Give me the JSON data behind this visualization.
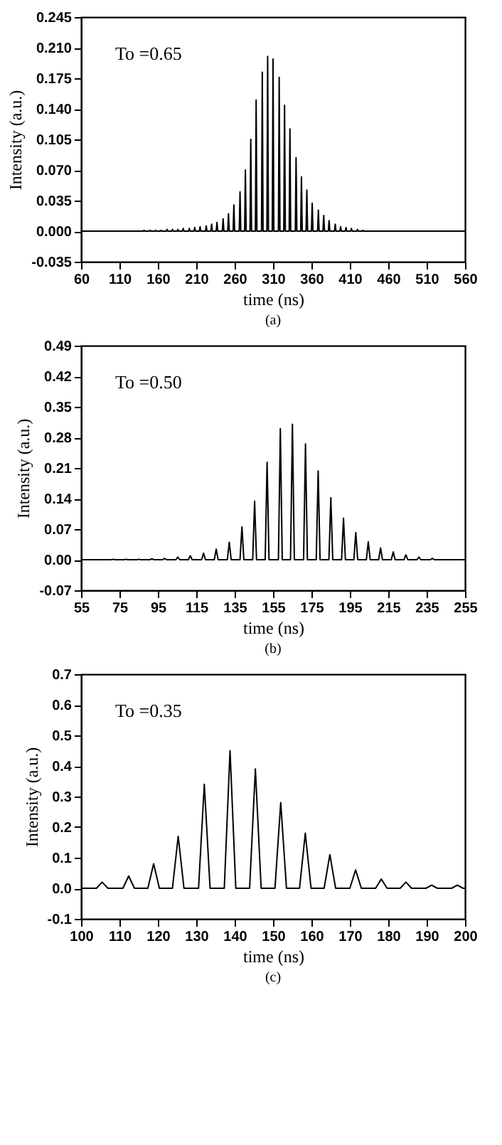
{
  "chart_data": [
    {
      "type": "line",
      "xlabel": "time (ns)",
      "ylabel": "Intensity (a.u.)",
      "annotations": [
        "To =0.65",
        "(a)"
      ],
      "xlim": [
        60,
        560
      ],
      "xticks": [
        60,
        110,
        160,
        210,
        260,
        310,
        360,
        410,
        460,
        510,
        560
      ],
      "ylim": [
        -0.035,
        0.245
      ],
      "yticks": [
        -0.035,
        {
          "value": 0,
          "label": "0.000"
        },
        0.035,
        {
          "value": 0.07,
          "label": "0.070"
        },
        0.105,
        {
          "value": 0.14,
          "label": "0.140"
        },
        0.175,
        {
          "value": 0.21,
          "label": "0.210"
        },
        0.245
      ],
      "x": [
        60,
        141,
        142,
        143,
        149,
        150,
        151,
        156,
        157,
        158,
        163,
        164,
        165,
        171,
        172,
        173,
        178,
        179,
        180,
        185,
        186,
        187,
        192,
        193,
        194,
        200,
        201,
        202,
        207,
        208,
        209,
        214,
        215,
        216,
        222,
        223,
        224,
        229,
        230,
        231,
        236,
        237,
        238,
        244,
        245,
        246,
        251,
        252,
        253,
        258,
        259,
        260,
        266,
        267,
        268,
        273,
        274,
        275,
        280,
        281,
        282,
        287,
        288,
        289,
        295,
        296,
        297,
        302,
        303,
        304,
        309,
        310,
        311,
        317,
        318,
        319,
        324,
        325,
        326,
        331,
        332,
        333,
        339,
        340,
        341,
        346,
        347,
        348,
        353,
        354,
        355,
        360,
        361,
        362,
        368,
        369,
        370,
        375,
        376,
        377,
        382,
        383,
        384,
        390,
        391,
        392,
        397,
        398,
        399,
        404,
        405,
        406,
        411,
        412,
        413,
        419,
        420,
        421,
        426,
        427,
        428,
        560
      ],
      "series": [
        {
          "color": "#000000",
          "values": [
            0,
            0,
            0.001,
            0,
            0,
            0.001,
            0,
            0,
            0.001,
            0,
            0,
            0.001,
            0,
            0,
            0.002,
            0,
            0,
            0.002,
            0,
            0,
            0.002,
            0,
            0,
            0.003,
            0,
            0,
            0.003,
            0,
            0,
            0.004,
            0,
            0,
            0.005,
            0,
            0,
            0.006,
            0,
            0,
            0.008,
            0,
            0,
            0.01,
            0,
            0,
            0.014,
            0,
            0,
            0.02,
            0,
            0,
            0.03,
            0,
            0,
            0.045,
            0,
            0,
            0.07,
            0,
            0,
            0.105,
            0,
            0,
            0.15,
            0,
            0,
            0.182,
            0,
            0,
            0.2,
            0,
            0,
            0.197,
            0,
            0,
            0.176,
            0,
            0,
            0.144,
            0,
            0,
            0.117,
            0,
            0,
            0.084,
            0,
            0,
            0.062,
            0,
            0,
            0.047,
            0,
            0,
            0.032,
            0,
            0,
            0.024,
            0,
            0,
            0.018,
            0,
            0,
            0.012,
            0,
            0,
            0.008,
            0,
            0,
            0.005,
            0,
            0,
            0.004,
            0,
            0,
            0.003,
            0,
            0,
            0.002,
            0,
            0,
            0.001,
            0,
            0
          ]
        }
      ]
    },
    {
      "type": "line",
      "xlabel": "time (ns)",
      "ylabel": "Intensity (a.u.)",
      "annotations": [
        "To =0.50",
        "(b)"
      ],
      "xlim": [
        55,
        255
      ],
      "xticks": [
        55,
        75,
        95,
        115,
        135,
        155,
        175,
        195,
        215,
        235,
        255
      ],
      "ylim": [
        -0.07,
        0.49
      ],
      "yticks": [
        -0.07,
        {
          "value": 0,
          "label": "0.00"
        },
        0.07,
        0.14,
        0.21,
        0.28,
        0.35,
        0.42,
        0.49
      ],
      "x": [
        55,
        70.7,
        71.7,
        72.7,
        77.3,
        78.3,
        79.3,
        84.1,
        85.1,
        86.1,
        90.9,
        91.9,
        92.9,
        97.5,
        98.5,
        99.5,
        104.4,
        105.4,
        106.4,
        110.9,
        111.9,
        112.9,
        117.8,
        118.8,
        119.8,
        124.4,
        125.4,
        126.4,
        131.2,
        132.2,
        133.2,
        137.8,
        138.8,
        139.8,
        144.4,
        145.4,
        146.4,
        150.9,
        151.9,
        152.9,
        157.8,
        158.8,
        159.8,
        164.1,
        165.1,
        166.1,
        170.9,
        171.9,
        172.9,
        177.5,
        178.5,
        179.5,
        184.1,
        185.1,
        186.1,
        190.7,
        191.7,
        192.7,
        197.1,
        198.1,
        199.1,
        203.6,
        204.6,
        205.6,
        210,
        211,
        212,
        216.6,
        217.6,
        218.6,
        223.2,
        224.2,
        225.2,
        230,
        231,
        232,
        237,
        238,
        239,
        255
      ],
      "series": [
        {
          "color": "#000000",
          "values": [
            0,
            0,
            0.001,
            0,
            0,
            0.001,
            0,
            0,
            0.001,
            0,
            0,
            0.002,
            0,
            0,
            0.003,
            0,
            0,
            0.006,
            0,
            0,
            0.009,
            0,
            0,
            0.015,
            0,
            0,
            0.024,
            0,
            0,
            0.04,
            0,
            0,
            0.075,
            0,
            0,
            0.134,
            0,
            0,
            0.223,
            0,
            0,
            0.3,
            0,
            0,
            0.31,
            0,
            0,
            0.265,
            0,
            0,
            0.203,
            0,
            0,
            0.142,
            0,
            0,
            0.095,
            0,
            0,
            0.062,
            0,
            0,
            0.041,
            0,
            0,
            0.027,
            0,
            0,
            0.018,
            0,
            0,
            0.011,
            0,
            0,
            0.006,
            0,
            0,
            0.003,
            0,
            0
          ]
        }
      ]
    },
    {
      "type": "line",
      "xlabel": "time (ns)",
      "ylabel": "Intensity (a.u.)",
      "annotations": [
        "To =0.35",
        "(c)"
      ],
      "xlim": [
        100,
        200
      ],
      "xticks": [
        100,
        110,
        120,
        130,
        140,
        150,
        160,
        170,
        180,
        190,
        200
      ],
      "ylim": [
        -0.1,
        0.7
      ],
      "yticks": [
        -0.1,
        {
          "value": 0,
          "label": "0.0"
        },
        0.1,
        0.2,
        0.3,
        0.4,
        0.5,
        0.6,
        0.7
      ],
      "x": [
        100,
        104,
        105.5,
        107,
        110.9,
        112.4,
        113.9,
        117.4,
        118.9,
        120.4,
        123.8,
        125.3,
        126.8,
        130.6,
        132.1,
        133.6,
        137.3,
        138.8,
        140.3,
        143.9,
        145.4,
        146.9,
        150.5,
        152,
        153.5,
        156.9,
        158.4,
        159.9,
        163.3,
        164.8,
        166.3,
        170,
        171.5,
        173,
        176.7,
        178.2,
        179.7,
        183.1,
        184.6,
        186.1,
        189.8,
        191.3,
        192.8,
        196.5,
        198,
        199.5,
        200
      ],
      "series": [
        {
          "color": "#000000",
          "values": [
            0,
            0,
            0.02,
            0,
            0,
            0.04,
            0,
            0,
            0.08,
            0,
            0,
            0.17,
            0,
            0,
            0.34,
            0,
            0,
            0.45,
            0,
            0,
            0.39,
            0,
            0,
            0.28,
            0,
            0,
            0.18,
            0,
            0,
            0.11,
            0,
            0,
            0.06,
            0,
            0,
            0.03,
            0,
            0,
            0.02,
            0,
            0,
            0.01,
            0,
            0,
            0.01,
            0,
            0
          ]
        }
      ]
    }
  ]
}
